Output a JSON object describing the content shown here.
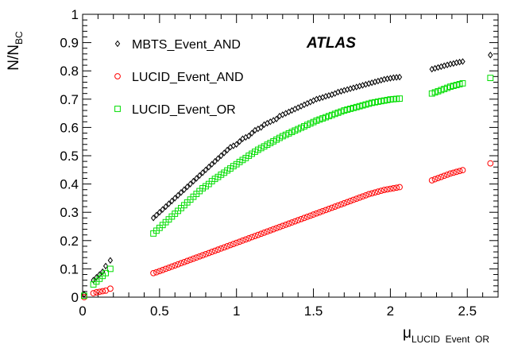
{
  "chart_data": {
    "type": "scatter",
    "title": "",
    "xlabel": "μ",
    "xlabel_sub": "LUCID  Event  OR",
    "ylabel": "N/N",
    "ylabel_sub": "BC",
    "xlim": [
      0,
      2.7
    ],
    "ylim": [
      0,
      1
    ],
    "xticks": [
      "0",
      "0.5",
      "1",
      "1.5",
      "2",
      "2.5"
    ],
    "yticks": [
      "0",
      "0.1",
      "0.2",
      "0.3",
      "0.4",
      "0.5",
      "0.6",
      "0.7",
      "0.8",
      "0.9",
      "1"
    ],
    "grid": false,
    "legend_position": "top-left",
    "annotation": "ATLAS",
    "series": [
      {
        "name": "MBTS_Event_AND",
        "marker": "diamond-open",
        "color": "#000000",
        "x": [
          0.01,
          0.07,
          0.09,
          0.11,
          0.13,
          0.15,
          0.18,
          0.46,
          0.48,
          0.5,
          0.52,
          0.54,
          0.56,
          0.58,
          0.6,
          0.62,
          0.64,
          0.66,
          0.68,
          0.7,
          0.72,
          0.74,
          0.76,
          0.78,
          0.8,
          0.82,
          0.84,
          0.86,
          0.88,
          0.9,
          0.92,
          0.94,
          0.96,
          0.98,
          1.0,
          1.02,
          1.04,
          1.06,
          1.08,
          1.1,
          1.12,
          1.14,
          1.16,
          1.18,
          1.2,
          1.22,
          1.24,
          1.26,
          1.28,
          1.3,
          1.32,
          1.34,
          1.36,
          1.38,
          1.4,
          1.42,
          1.44,
          1.46,
          1.48,
          1.5,
          1.52,
          1.54,
          1.56,
          1.58,
          1.6,
          1.62,
          1.64,
          1.66,
          1.68,
          1.7,
          1.72,
          1.74,
          1.76,
          1.78,
          1.8,
          1.82,
          1.84,
          1.86,
          1.88,
          1.9,
          1.92,
          1.94,
          1.96,
          1.98,
          2.0,
          2.02,
          2.04,
          2.06,
          2.27,
          2.29,
          2.31,
          2.33,
          2.35,
          2.37,
          2.39,
          2.41,
          2.43,
          2.45,
          2.47,
          2.65
        ],
        "y": [
          0.01,
          0.06,
          0.07,
          0.08,
          0.09,
          0.11,
          0.13,
          0.28,
          0.29,
          0.3,
          0.31,
          0.32,
          0.33,
          0.34,
          0.35,
          0.36,
          0.37,
          0.38,
          0.39,
          0.4,
          0.41,
          0.42,
          0.43,
          0.44,
          0.45,
          0.46,
          0.47,
          0.48,
          0.49,
          0.5,
          0.51,
          0.52,
          0.53,
          0.535,
          0.54,
          0.55,
          0.56,
          0.565,
          0.57,
          0.58,
          0.59,
          0.595,
          0.6,
          0.61,
          0.615,
          0.62,
          0.625,
          0.63,
          0.64,
          0.645,
          0.65,
          0.655,
          0.66,
          0.665,
          0.67,
          0.675,
          0.68,
          0.685,
          0.69,
          0.695,
          0.7,
          0.703,
          0.706,
          0.71,
          0.713,
          0.716,
          0.72,
          0.725,
          0.728,
          0.731,
          0.734,
          0.737,
          0.74,
          0.743,
          0.746,
          0.749,
          0.752,
          0.755,
          0.758,
          0.761,
          0.764,
          0.767,
          0.77,
          0.772,
          0.774,
          0.776,
          0.777,
          0.778,
          0.806,
          0.809,
          0.812,
          0.815,
          0.818,
          0.821,
          0.824,
          0.826,
          0.829,
          0.831,
          0.833,
          0.856
        ]
      },
      {
        "name": "LUCID_Event_AND",
        "marker": "circle-open",
        "color": "#ff0000",
        "x": [
          0.01,
          0.07,
          0.09,
          0.11,
          0.13,
          0.15,
          0.18,
          0.46,
          0.48,
          0.5,
          0.52,
          0.54,
          0.56,
          0.58,
          0.6,
          0.62,
          0.64,
          0.66,
          0.68,
          0.7,
          0.72,
          0.74,
          0.76,
          0.78,
          0.8,
          0.82,
          0.84,
          0.86,
          0.88,
          0.9,
          0.92,
          0.94,
          0.96,
          0.98,
          1.0,
          1.02,
          1.04,
          1.06,
          1.08,
          1.1,
          1.12,
          1.14,
          1.16,
          1.18,
          1.2,
          1.22,
          1.24,
          1.26,
          1.28,
          1.3,
          1.32,
          1.34,
          1.36,
          1.38,
          1.4,
          1.42,
          1.44,
          1.46,
          1.48,
          1.5,
          1.52,
          1.54,
          1.56,
          1.58,
          1.6,
          1.62,
          1.64,
          1.66,
          1.68,
          1.7,
          1.72,
          1.74,
          1.76,
          1.78,
          1.8,
          1.82,
          1.84,
          1.86,
          1.88,
          1.9,
          1.92,
          1.94,
          1.96,
          1.98,
          2.0,
          2.02,
          2.04,
          2.06,
          2.27,
          2.29,
          2.31,
          2.33,
          2.35,
          2.37,
          2.39,
          2.41,
          2.43,
          2.45,
          2.47,
          2.65
        ],
        "y": [
          0.0,
          0.014,
          0.017,
          0.019,
          0.021,
          0.023,
          0.03,
          0.085,
          0.088,
          0.092,
          0.096,
          0.1,
          0.104,
          0.108,
          0.112,
          0.116,
          0.12,
          0.124,
          0.128,
          0.132,
          0.136,
          0.14,
          0.144,
          0.148,
          0.152,
          0.156,
          0.16,
          0.164,
          0.168,
          0.172,
          0.176,
          0.18,
          0.184,
          0.188,
          0.192,
          0.196,
          0.2,
          0.204,
          0.208,
          0.212,
          0.216,
          0.22,
          0.224,
          0.228,
          0.232,
          0.236,
          0.24,
          0.244,
          0.248,
          0.252,
          0.256,
          0.26,
          0.264,
          0.268,
          0.272,
          0.276,
          0.28,
          0.284,
          0.288,
          0.292,
          0.296,
          0.3,
          0.304,
          0.308,
          0.312,
          0.316,
          0.32,
          0.324,
          0.328,
          0.332,
          0.336,
          0.34,
          0.344,
          0.348,
          0.352,
          0.356,
          0.36,
          0.364,
          0.367,
          0.37,
          0.373,
          0.376,
          0.379,
          0.381,
          0.383,
          0.385,
          0.387,
          0.389,
          0.413,
          0.417,
          0.421,
          0.425,
          0.429,
          0.433,
          0.437,
          0.44,
          0.443,
          0.446,
          0.449,
          0.473
        ]
      },
      {
        "name": "LUCID_Event_OR",
        "marker": "square-open",
        "color": "#00dd00",
        "x": [
          0.01,
          0.07,
          0.09,
          0.11,
          0.13,
          0.15,
          0.18,
          0.46,
          0.48,
          0.5,
          0.52,
          0.54,
          0.56,
          0.58,
          0.6,
          0.62,
          0.64,
          0.66,
          0.68,
          0.7,
          0.72,
          0.74,
          0.76,
          0.78,
          0.8,
          0.82,
          0.84,
          0.86,
          0.88,
          0.9,
          0.92,
          0.94,
          0.96,
          0.98,
          1.0,
          1.02,
          1.04,
          1.06,
          1.08,
          1.1,
          1.12,
          1.14,
          1.16,
          1.18,
          1.2,
          1.22,
          1.24,
          1.26,
          1.28,
          1.3,
          1.32,
          1.34,
          1.36,
          1.38,
          1.4,
          1.42,
          1.44,
          1.46,
          1.48,
          1.5,
          1.52,
          1.54,
          1.56,
          1.58,
          1.6,
          1.62,
          1.64,
          1.66,
          1.68,
          1.7,
          1.72,
          1.74,
          1.76,
          1.78,
          1.8,
          1.82,
          1.84,
          1.86,
          1.88,
          1.9,
          1.92,
          1.94,
          1.96,
          1.98,
          2.0,
          2.02,
          2.04,
          2.06,
          2.27,
          2.29,
          2.31,
          2.33,
          2.35,
          2.37,
          2.39,
          2.41,
          2.43,
          2.45,
          2.47,
          2.65
        ],
        "y": [
          0.005,
          0.045,
          0.055,
          0.065,
          0.075,
          0.085,
          0.1,
          0.225,
          0.235,
          0.245,
          0.255,
          0.265,
          0.275,
          0.285,
          0.295,
          0.305,
          0.315,
          0.325,
          0.335,
          0.345,
          0.355,
          0.365,
          0.375,
          0.385,
          0.392,
          0.4,
          0.41,
          0.418,
          0.425,
          0.433,
          0.44,
          0.448,
          0.455,
          0.463,
          0.47,
          0.478,
          0.485,
          0.492,
          0.5,
          0.507,
          0.514,
          0.521,
          0.527,
          0.533,
          0.539,
          0.545,
          0.551,
          0.557,
          0.563,
          0.569,
          0.574,
          0.579,
          0.584,
          0.589,
          0.594,
          0.599,
          0.604,
          0.609,
          0.614,
          0.619,
          0.624,
          0.628,
          0.632,
          0.636,
          0.64,
          0.644,
          0.648,
          0.652,
          0.656,
          0.66,
          0.663,
          0.666,
          0.669,
          0.672,
          0.675,
          0.678,
          0.681,
          0.684,
          0.687,
          0.689,
          0.691,
          0.693,
          0.695,
          0.697,
          0.699,
          0.7,
          0.701,
          0.702,
          0.72,
          0.724,
          0.728,
          0.732,
          0.736,
          0.74,
          0.744,
          0.747,
          0.75,
          0.753,
          0.756,
          0.775
        ]
      }
    ]
  }
}
